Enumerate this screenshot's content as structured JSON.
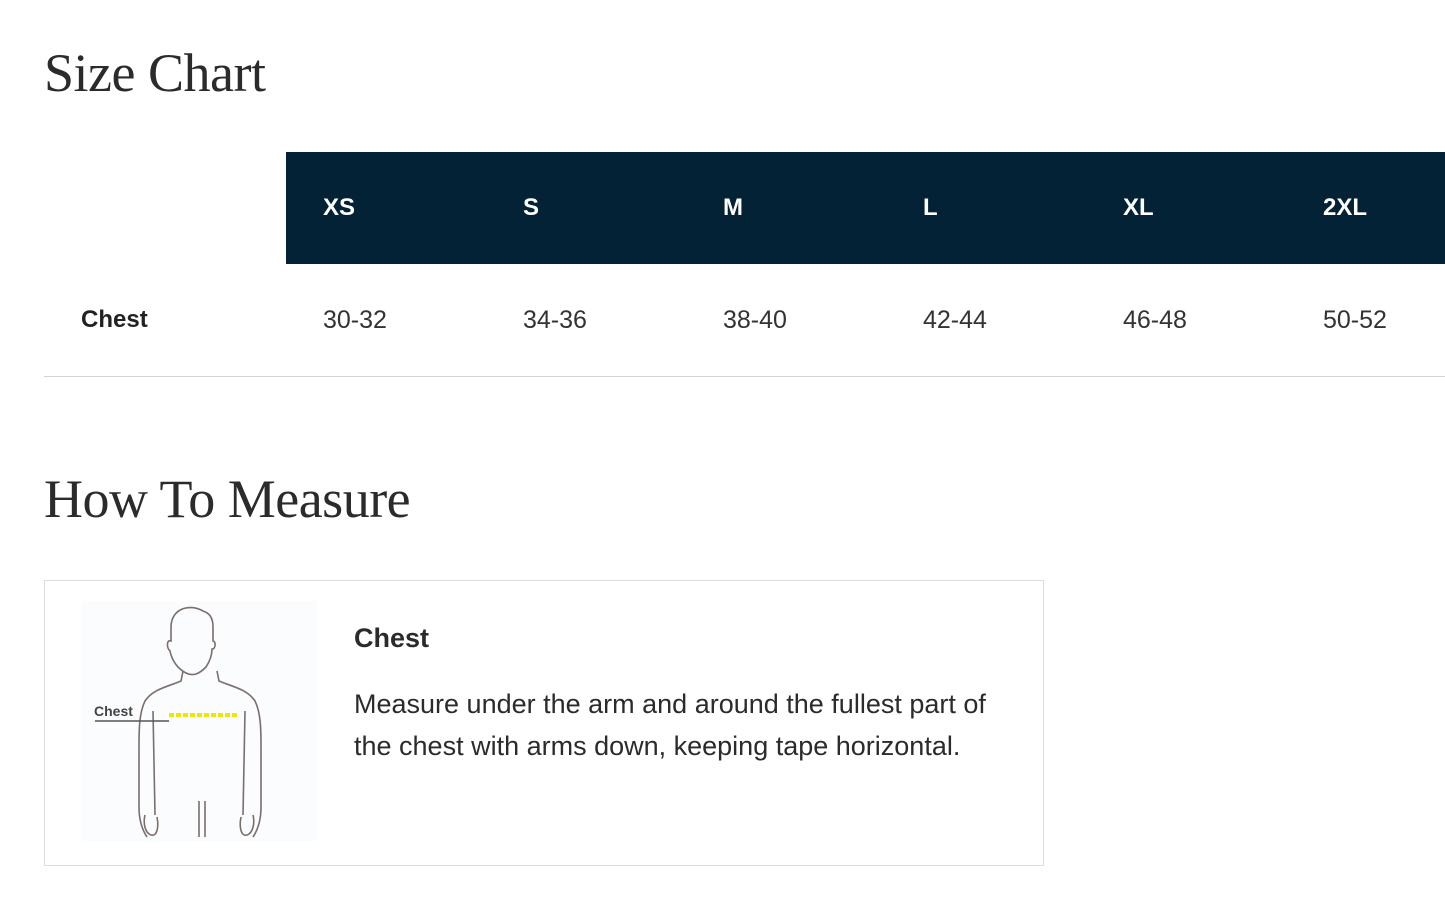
{
  "size_chart": {
    "title": "Size Chart",
    "sizes": [
      "XS",
      "S",
      "M",
      "L",
      "XL",
      "2XL"
    ],
    "rows": [
      {
        "label": "Chest",
        "values": [
          "30-32",
          "34-36",
          "38-40",
          "42-44",
          "46-48",
          "50-52"
        ]
      }
    ],
    "header_color": "#032236"
  },
  "how_to_measure": {
    "title": "How To Measure",
    "items": [
      {
        "figure_label": "Chest",
        "title": "Chest",
        "description": "Measure under the arm and around the fullest part of the chest with arms down, keeping tape horizontal.",
        "icon": "body-measurement-illustration"
      }
    ]
  }
}
